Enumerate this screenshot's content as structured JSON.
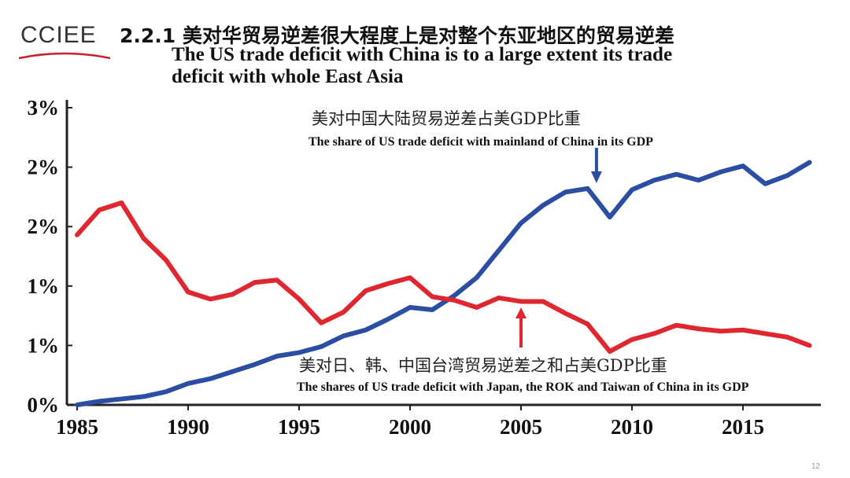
{
  "logo": {
    "text": "CCIEE",
    "accent": "#c8202a"
  },
  "header": {
    "title_cn": "2.2.1 美对华贸易逆差很大程度上是对整个东亚地区的贸易逆差",
    "title_en_line1": "The US trade deficit with China is to a large extent its trade",
    "title_en_line2": "deficit with whole East Asia"
  },
  "page_number": "12",
  "chart_data": {
    "type": "line",
    "x": [
      1985,
      1986,
      1987,
      1988,
      1989,
      1990,
      1991,
      1992,
      1993,
      1994,
      1995,
      1996,
      1997,
      1998,
      1999,
      2000,
      2001,
      2002,
      2003,
      2004,
      2005,
      2006,
      2007,
      2008,
      2009,
      2010,
      2011,
      2012,
      2013,
      2014,
      2015,
      2016,
      2017,
      2018
    ],
    "xticks": [
      1985,
      1990,
      1995,
      2000,
      2005,
      2010,
      2015
    ],
    "xtick_labels": [
      "1985",
      "1990",
      "1995",
      "2000",
      "2005",
      "2010",
      "2015"
    ],
    "yticks": [
      0,
      0.5,
      1.0,
      1.5,
      2.0,
      2.5
    ],
    "ytick_labels": [
      "0%",
      "1%",
      "1%",
      "2%",
      "2%",
      "3%"
    ],
    "ylim": [
      0,
      2.5
    ],
    "xlim": [
      1985,
      2018.5
    ],
    "grid": false,
    "series": [
      {
        "color": "#2b4ea2",
        "values": [
          0,
          0.03,
          0.05,
          0.07,
          0.11,
          0.18,
          0.22,
          0.28,
          0.34,
          0.41,
          0.44,
          0.49,
          0.58,
          0.63,
          0.72,
          0.82,
          0.8,
          0.92,
          1.07,
          1.3,
          1.53,
          1.68,
          1.79,
          1.82,
          1.58,
          1.81,
          1.89,
          1.94,
          1.89,
          1.96,
          2.01,
          1.86,
          1.93,
          2.04
        ]
      },
      {
        "color": "#e0262e",
        "values": [
          1.43,
          1.64,
          1.7,
          1.4,
          1.22,
          0.95,
          0.89,
          0.93,
          1.03,
          1.05,
          0.89,
          0.69,
          0.78,
          0.96,
          1.02,
          1.07,
          0.91,
          0.88,
          0.82,
          0.9,
          0.87,
          0.87,
          0.77,
          0.68,
          0.45,
          0.55,
          0.6,
          0.67,
          0.64,
          0.62,
          0.63,
          0.6,
          0.57,
          0.5
        ]
      }
    ],
    "annotations": [
      {
        "cn": "美对中国大陆贸易逆差占美GDP比重",
        "en": "The share of US trade deficit with mainland of China in its GDP",
        "arrow_year": 2008.4,
        "color": "#2b4ea2"
      },
      {
        "cn": "美对日、韩、中国台湾贸易逆差之和占美GDP比重",
        "en": "The shares of US trade deficit with Japan, the ROK and Taiwan of China in its GDP",
        "arrow_year": 2005,
        "color": "#e0262e"
      }
    ]
  }
}
